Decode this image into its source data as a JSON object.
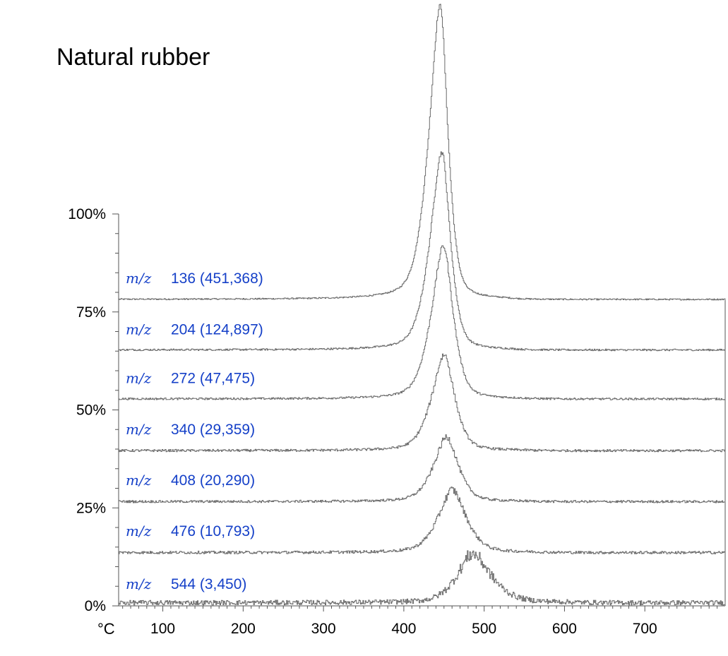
{
  "chart_data": {
    "type": "line",
    "title": "Natural rubber",
    "x_unit_label": "°C",
    "x_ticks": [
      "100",
      "200",
      "300",
      "400",
      "500",
      "600",
      "700"
    ],
    "y_ticks": [
      "0%",
      "25%",
      "50%",
      "75%",
      "100%"
    ],
    "xlim": [
      45,
      800
    ],
    "ylim": [
      0,
      100
    ],
    "grid": false,
    "series": [
      {
        "mz_label": "m/z",
        "mass": "136",
        "count": "(451,368)",
        "offset": 78,
        "base": 78.2,
        "peak_x": 445,
        "peak_h": 75.0,
        "w_left": 30,
        "w_right": 20,
        "tail_x": 525,
        "noise": 0.35
      },
      {
        "mz_label": "m/z",
        "mass": "204",
        "count": "(124,897)",
        "offset": 65,
        "base": 65.3,
        "peak_x": 447,
        "peak_h": 50.5,
        "w_left": 31,
        "w_right": 22,
        "tail_x": 530,
        "noise": 0.45
      },
      {
        "mz_label": "m/z",
        "mass": "272",
        "count": "(47,475)",
        "offset": 52.5,
        "base": 52.8,
        "peak_x": 449,
        "peak_h": 39.0,
        "w_left": 32,
        "w_right": 25,
        "tail_x": 540,
        "noise": 0.5
      },
      {
        "mz_label": "m/z",
        "mass": "340",
        "count": "(29,359)",
        "offset": 39.5,
        "base": 39.6,
        "peak_x": 450,
        "peak_h": 24.5,
        "w_left": 33,
        "w_right": 27,
        "tail_x": 545,
        "noise": 0.6
      },
      {
        "mz_label": "m/z",
        "mass": "408",
        "count": "(20,290)",
        "offset": 26.5,
        "base": 26.6,
        "peak_x": 453,
        "peak_h": 16.5,
        "w_left": 34,
        "w_right": 30,
        "tail_x": 550,
        "noise": 0.6
      },
      {
        "mz_label": "m/z",
        "mass": "476",
        "count": "(10,793)",
        "offset": 13.5,
        "base": 13.6,
        "peak_x": 460,
        "peak_h": 16.0,
        "w_left": 37,
        "w_right": 36,
        "tail_x": 560,
        "noise": 0.7
      },
      {
        "mz_label": "m/z",
        "mass": "544",
        "count": "(3,450)",
        "offset": 0,
        "base": 0.8,
        "peak_x": 485,
        "peak_h": 12.5,
        "w_left": 40,
        "w_right": 48,
        "tail_x": 600,
        "noise": 1.2
      }
    ]
  }
}
